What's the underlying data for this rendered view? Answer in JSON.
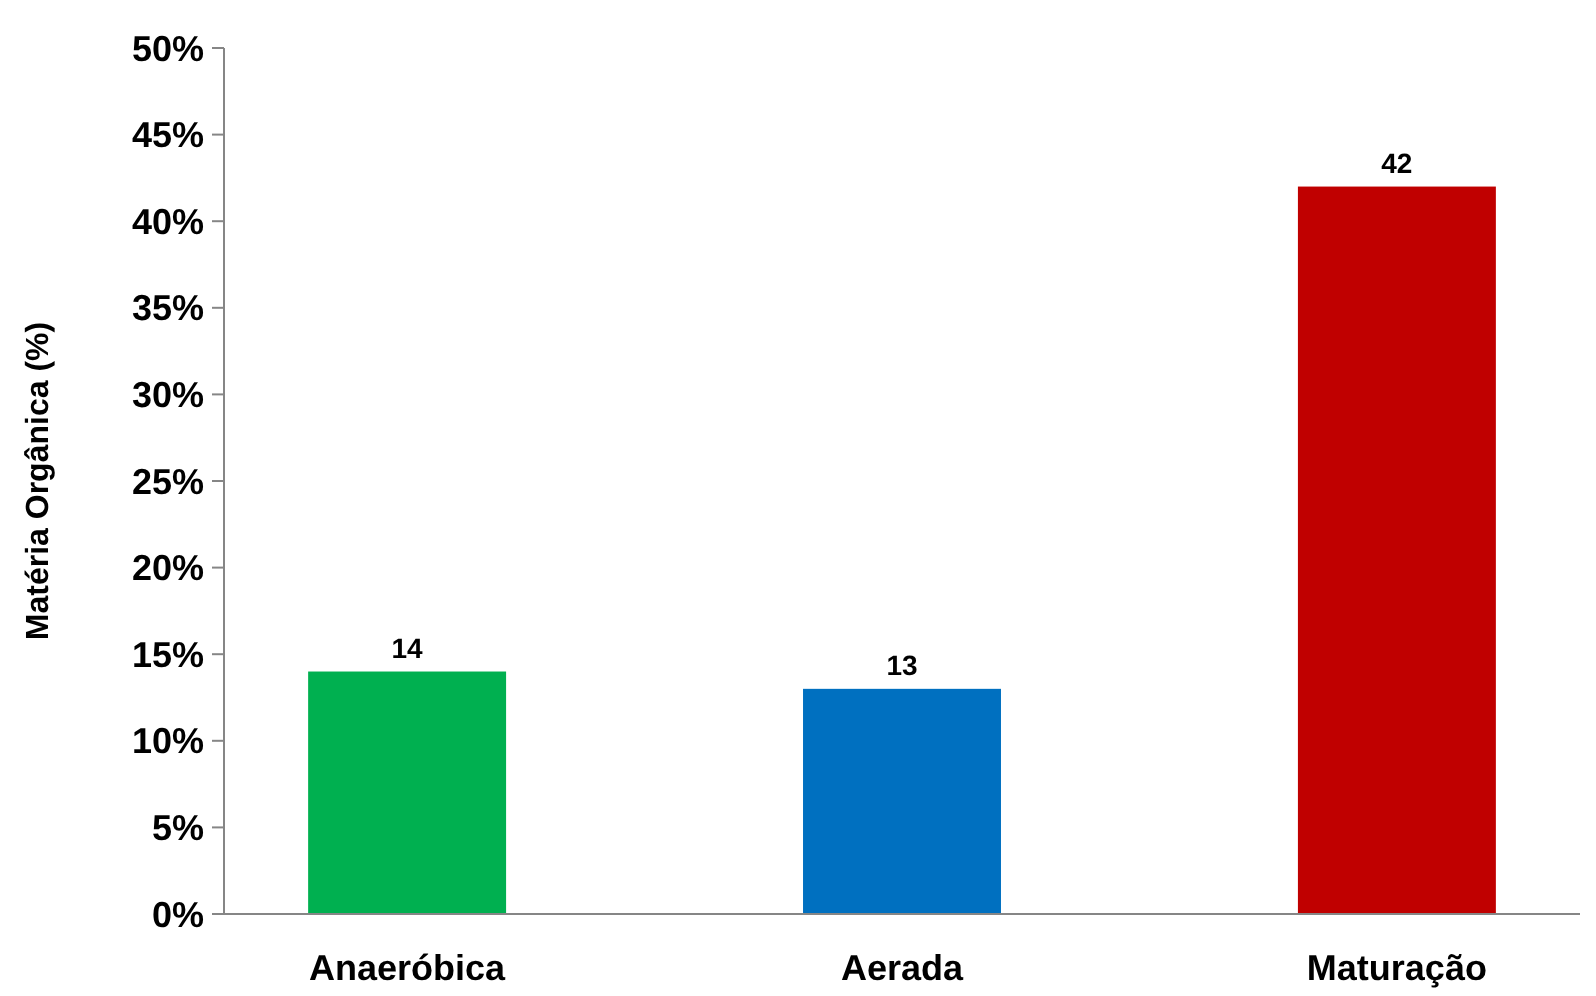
{
  "chart_data": {
    "type": "bar",
    "ylabel": "Matéria Orgânica (%)",
    "categories": [
      "Anaeróbica",
      "Aerada",
      "Maturação"
    ],
    "values": [
      14,
      13,
      42
    ],
    "colors": [
      "#00b050",
      "#0070c0",
      "#c00000"
    ],
    "ylim": [
      0,
      50
    ],
    "yticks": [
      {
        "value": 0,
        "label": "0%"
      },
      {
        "value": 5,
        "label": "5%"
      },
      {
        "value": 10,
        "label": "10%"
      },
      {
        "value": 15,
        "label": "15%"
      },
      {
        "value": 20,
        "label": "20%"
      },
      {
        "value": 25,
        "label": "25%"
      },
      {
        "value": 30,
        "label": "30%"
      },
      {
        "value": 35,
        "label": "35%"
      },
      {
        "value": 40,
        "label": "40%"
      },
      {
        "value": 45,
        "label": "45%"
      },
      {
        "value": 50,
        "label": "50%"
      }
    ],
    "data_labels": true,
    "grid": false
  }
}
